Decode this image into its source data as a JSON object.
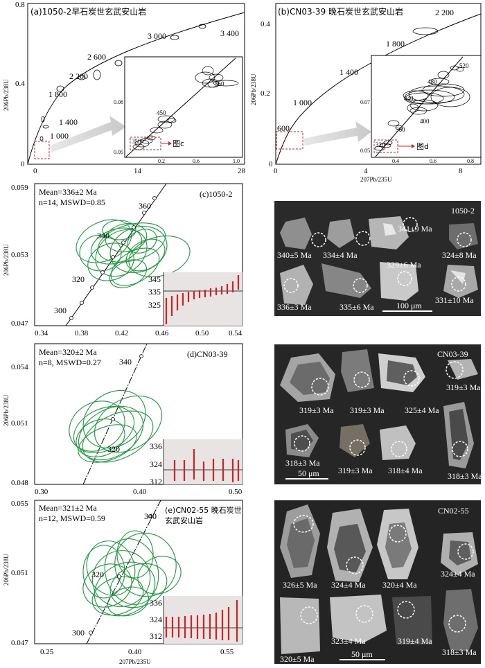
{
  "panels": {
    "a": {
      "title": "(a)1050-2早石炭世玄武安山岩",
      "ages": [
        "3 400",
        "3 000",
        "2 600",
        "2 200",
        "1 800",
        "1 400",
        "1 000"
      ],
      "xticks": [
        "0",
        "14",
        "28"
      ],
      "yticks": [
        "0",
        "0.4",
        "0.8"
      ],
      "inset": {
        "ages": [
          "550",
          "450",
          "350"
        ],
        "xticks": [
          "0.2",
          "0.6",
          "1.0"
        ],
        "yticks": [
          "0.05",
          "0.08"
        ],
        "ref": "图c"
      }
    },
    "b": {
      "title": "(b)CN03-39 晚石炭世玄武安山岩",
      "ages": [
        "2 200",
        "1 800",
        "1 400",
        "1 000",
        "600"
      ],
      "xticks": [
        "0",
        "4",
        "8"
      ],
      "yticks": [
        "0",
        "0.2",
        "0.4"
      ],
      "inset": {
        "ages": [
          "520",
          "480",
          "440",
          "400",
          "360",
          "320"
        ],
        "xticks": [
          "0.4",
          "0.6",
          "0.8"
        ],
        "yticks": [
          "0.05",
          "0.07"
        ],
        "ref": "图d"
      }
    },
    "c": {
      "label": "(c)1050-2",
      "mean": "Mean=336±2 Ma",
      "nm": "n=14, MSWD=0.85",
      "ages": [
        "360",
        "340",
        "320",
        "300"
      ],
      "xticks": [
        "0.34",
        "0.38",
        "0.42",
        "0.46",
        "0.50",
        "0.54"
      ],
      "yticks": [
        "0.047",
        "0.053",
        "0.059"
      ],
      "bar_ticks": [
        "345",
        "335",
        "325"
      ]
    },
    "d": {
      "label": "(d)CN03-39",
      "mean": "Mean=320±2 Ma",
      "nm": "n=8, MSWD=0.27",
      "ages": [
        "340",
        "320"
      ],
      "xticks": [
        "0.30",
        "0.40",
        "0.50"
      ],
      "yticks": [
        "0.048",
        "0.051",
        "0.054"
      ],
      "bar_ticks": [
        "336",
        "324",
        "312"
      ]
    },
    "e": {
      "label": "(e)CN02-55 晚石炭世",
      "label2": "玄武安山岩",
      "mean": "Mean=321±2 Ma",
      "nm": "n=12, MSWD=0.59",
      "ages": [
        "340",
        "320",
        "300"
      ],
      "xticks": [
        "0.25",
        "0.40",
        "0.55"
      ],
      "yticks": [
        "0.047",
        "0.051",
        "0.055"
      ],
      "bar_ticks": [
        "336",
        "324",
        "312"
      ]
    }
  },
  "axis": {
    "y": "206Pb/238U",
    "x": "207Pb/235U"
  },
  "cl": {
    "c": {
      "sample": "1050-2",
      "scale": "100 μm",
      "ages": [
        "340±5 Ma",
        "334±4 Ma",
        "341±9 Ma",
        "324±8 Ma",
        "329±6 Ma",
        "336±3 Ma",
        "335±6 Ma",
        "331±10 Ma"
      ]
    },
    "d": {
      "sample": "CN03-39",
      "scale": "50 μm",
      "ages": [
        "319±3 Ma",
        "319±3 Ma",
        "325±4 Ma",
        "319±3 Ma",
        "318±3 Ma",
        "319±3 Ma",
        "318±4 Ma",
        "318±3 Ma"
      ]
    },
    "e": {
      "sample": "CN02-55",
      "scale": "50 μm",
      "ages": [
        "326±5 Ma",
        "324±4 Ma",
        "320±4 Ma",
        "324±4 Ma",
        "320±5 Ma",
        "323±4 Ma",
        "319±4 Ma",
        "318±3 Ma"
      ]
    }
  },
  "colors": {
    "ellipse": "#1a9a3a",
    "bar": "#d42020",
    "barbg": "#e9e4e4",
    "ref": "#d42020"
  }
}
